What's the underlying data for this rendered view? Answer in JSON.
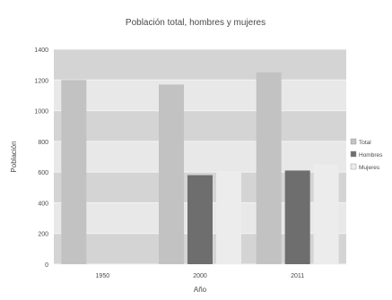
{
  "chart_data": {
    "type": "bar",
    "title": "Población total, hombres y mujeres",
    "xlabel": "Año",
    "ylabel": "Población",
    "categories": [
      "1950",
      "2000",
      "2011"
    ],
    "series": [
      {
        "name": "Total",
        "values": [
          1200,
          1170,
          1250
        ]
      },
      {
        "name": "Hombres",
        "values": [
          null,
          580,
          610
        ]
      },
      {
        "name": "Mujeres",
        "values": [
          null,
          605,
          650
        ]
      }
    ],
    "yticks": [
      0,
      200,
      400,
      600,
      800,
      1000,
      1200,
      1400
    ],
    "ylim": [
      0,
      1400
    ],
    "grid": true,
    "legend": "right",
    "colors": {
      "plot_bg": "#d4d4d4",
      "band": "#e8e8e8",
      "Total": "#c2c2c2",
      "Hombres": "#6e6e6e",
      "Mujeres": "#ececec"
    }
  }
}
